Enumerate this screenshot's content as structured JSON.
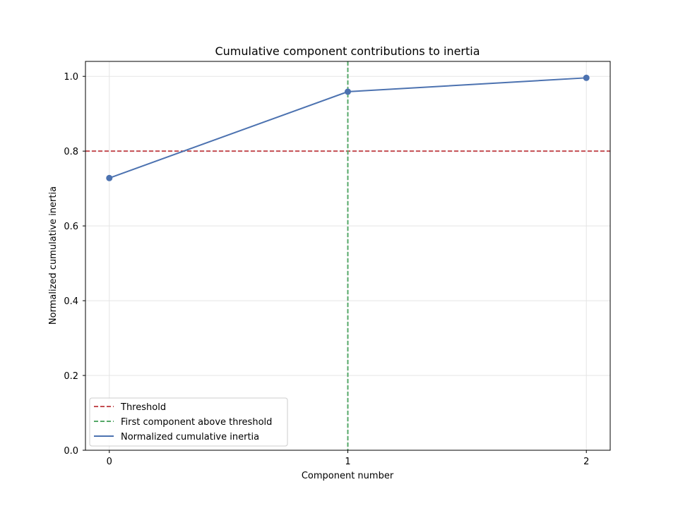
{
  "chart_data": {
    "type": "line",
    "title": "Cumulative component contributions to inertia",
    "xlabel": "Component number",
    "ylabel": "Normalized cumulative inertia",
    "x": [
      0,
      1,
      2
    ],
    "xticks": [
      "0",
      "1",
      "2"
    ],
    "xlim": [
      -0.1,
      2.1
    ],
    "ylim": [
      0,
      1.04
    ],
    "yticks": [
      "0.0",
      "0.2",
      "0.4",
      "0.6",
      "0.8",
      "1.0"
    ],
    "grid": true,
    "legend_position": "lower-left",
    "series": [
      {
        "name": "Normalized cumulative inertia",
        "values": [
          0.728,
          0.959,
          0.996
        ],
        "color": "#4c72b0",
        "style": "solid",
        "markers": true
      }
    ],
    "threshold": {
      "name": "Threshold",
      "value": 0.8,
      "color": "#c44e52",
      "style": "dashed"
    },
    "first_component": {
      "name": "First component above threshold",
      "value": 1,
      "color": "#55a868",
      "style": "dashed"
    }
  }
}
